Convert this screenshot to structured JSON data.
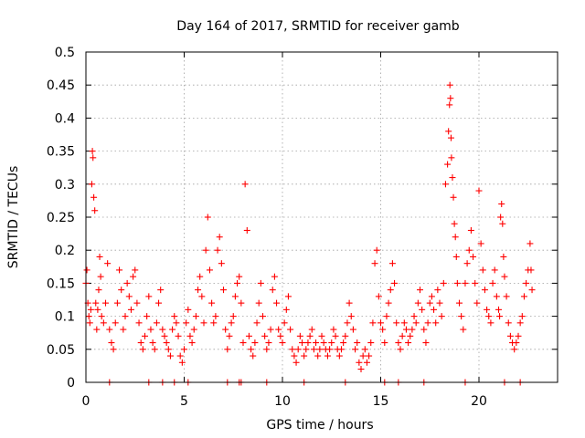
{
  "chart_data": {
    "type": "scatter",
    "title": "Day 164 of 2017, SRMTID for receiver gamb",
    "xlabel": "GPS time / hours",
    "ylabel": "SRMTID / TECUs",
    "xlim": [
      0,
      24
    ],
    "ylim": [
      0,
      0.5
    ],
    "xticks": [
      0,
      5,
      10,
      15,
      20
    ],
    "xtick_labels": [
      "0",
      "5",
      "10",
      "15",
      "20"
    ],
    "yticks": [
      0,
      0.05,
      0.1,
      0.15,
      0.2,
      0.25,
      0.3,
      0.35,
      0.4,
      0.45,
      0.5
    ],
    "ytick_labels": [
      "0",
      "0.05",
      "0.1",
      "0.15",
      "0.2",
      "0.25",
      "0.3",
      "0.35",
      "0.4",
      "0.45",
      "0.5"
    ],
    "grid": true,
    "marker": "+",
    "series": [
      {
        "name": "SRMTID",
        "color": "#ff0000",
        "x": [
          0.0,
          0.05,
          0.1,
          0.15,
          0.2,
          0.25,
          0.3,
          0.33,
          0.36,
          0.4,
          0.45,
          0.5,
          0.55,
          0.6,
          0.65,
          0.7,
          0.75,
          0.8,
          0.9,
          1.0,
          1.1,
          1.2,
          1.3,
          1.4,
          1.5,
          1.6,
          1.7,
          1.8,
          1.9,
          2.0,
          2.1,
          2.2,
          2.3,
          2.4,
          2.5,
          2.6,
          2.7,
          2.8,
          2.9,
          3.0,
          3.1,
          3.2,
          3.3,
          3.4,
          3.5,
          3.6,
          3.7,
          3.8,
          3.9,
          4.0,
          4.1,
          4.2,
          4.3,
          4.4,
          4.5,
          4.6,
          4.7,
          4.8,
          4.9,
          5.0,
          5.1,
          5.2,
          5.3,
          5.4,
          5.5,
          5.6,
          5.7,
          5.8,
          5.9,
          6.0,
          6.1,
          6.2,
          6.3,
          6.4,
          6.5,
          6.6,
          6.7,
          6.8,
          6.9,
          7.0,
          7.1,
          7.2,
          7.3,
          7.4,
          7.5,
          7.6,
          7.7,
          7.8,
          7.9,
          8.0,
          8.1,
          8.2,
          8.3,
          8.4,
          8.5,
          8.6,
          8.7,
          8.8,
          8.9,
          9.0,
          9.1,
          9.2,
          9.3,
          9.4,
          9.5,
          9.6,
          9.7,
          9.8,
          9.9,
          10.0,
          10.1,
          10.2,
          10.3,
          10.4,
          10.5,
          10.6,
          10.7,
          10.8,
          10.9,
          11.0,
          11.1,
          11.2,
          11.3,
          11.4,
          11.5,
          11.6,
          11.7,
          11.8,
          11.9,
          12.0,
          12.1,
          12.2,
          12.3,
          12.4,
          12.5,
          12.6,
          12.7,
          12.8,
          12.9,
          13.0,
          13.1,
          13.2,
          13.3,
          13.4,
          13.5,
          13.6,
          13.7,
          13.8,
          13.9,
          14.0,
          14.1,
          14.2,
          14.3,
          14.4,
          14.5,
          14.6,
          14.7,
          14.8,
          14.9,
          15.0,
          15.1,
          15.2,
          15.3,
          15.4,
          15.5,
          15.6,
          15.7,
          15.8,
          15.9,
          16.0,
          16.1,
          16.2,
          16.3,
          16.4,
          16.5,
          16.6,
          16.7,
          16.8,
          16.9,
          17.0,
          17.1,
          17.2,
          17.3,
          17.4,
          17.5,
          17.6,
          17.7,
          17.8,
          17.9,
          18.0,
          18.1,
          18.2,
          18.3,
          18.4,
          18.45,
          18.5,
          18.52,
          18.55,
          18.58,
          18.6,
          18.65,
          18.7,
          18.75,
          18.8,
          18.85,
          18.9,
          19.0,
          19.1,
          19.2,
          19.3,
          19.4,
          19.5,
          19.6,
          19.7,
          19.8,
          19.9,
          20.0,
          20.1,
          20.2,
          20.3,
          20.4,
          20.5,
          20.6,
          20.7,
          20.8,
          20.9,
          21.0,
          21.05,
          21.1,
          21.15,
          21.2,
          21.25,
          21.3,
          21.4,
          21.5,
          21.6,
          21.7,
          21.8,
          21.9,
          22.0,
          22.1,
          22.2,
          22.3,
          22.4,
          22.5,
          22.6,
          22.65,
          22.7,
          1.2,
          3.2,
          3.9,
          4.5,
          5.2,
          7.2,
          7.8,
          7.9,
          9.2,
          11.1,
          13.2,
          15.2,
          15.9,
          17.2,
          19.3,
          21.3,
          22.1
        ],
        "y": [
          0.15,
          0.17,
          0.12,
          0.1,
          0.09,
          0.11,
          0.3,
          0.35,
          0.34,
          0.28,
          0.26,
          0.12,
          0.08,
          0.11,
          0.14,
          0.19,
          0.16,
          0.1,
          0.09,
          0.12,
          0.18,
          0.08,
          0.06,
          0.05,
          0.09,
          0.12,
          0.17,
          0.14,
          0.08,
          0.1,
          0.15,
          0.13,
          0.11,
          0.16,
          0.17,
          0.12,
          0.09,
          0.06,
          0.05,
          0.07,
          0.1,
          0.13,
          0.08,
          0.06,
          0.05,
          0.09,
          0.12,
          0.14,
          0.08,
          0.07,
          0.06,
          0.05,
          0.04,
          0.08,
          0.1,
          0.09,
          0.07,
          0.04,
          0.03,
          0.05,
          0.09,
          0.11,
          0.07,
          0.06,
          0.08,
          0.1,
          0.14,
          0.16,
          0.13,
          0.09,
          0.2,
          0.25,
          0.17,
          0.12,
          0.09,
          0.1,
          0.2,
          0.22,
          0.18,
          0.14,
          0.08,
          0.05,
          0.07,
          0.09,
          0.1,
          0.13,
          0.15,
          0.16,
          0.12,
          0.06,
          0.3,
          0.23,
          0.07,
          0.05,
          0.04,
          0.06,
          0.09,
          0.12,
          0.15,
          0.1,
          0.07,
          0.05,
          0.06,
          0.08,
          0.14,
          0.16,
          0.12,
          0.08,
          0.07,
          0.06,
          0.09,
          0.11,
          0.13,
          0.08,
          0.05,
          0.04,
          0.03,
          0.05,
          0.07,
          0.06,
          0.04,
          0.05,
          0.06,
          0.07,
          0.08,
          0.05,
          0.06,
          0.04,
          0.05,
          0.07,
          0.06,
          0.05,
          0.04,
          0.05,
          0.06,
          0.08,
          0.07,
          0.05,
          0.04,
          0.05,
          0.06,
          0.07,
          0.09,
          0.12,
          0.1,
          0.08,
          0.05,
          0.06,
          0.03,
          0.02,
          0.04,
          0.05,
          0.03,
          0.04,
          0.06,
          0.09,
          0.18,
          0.2,
          0.13,
          0.09,
          0.08,
          0.06,
          0.1,
          0.12,
          0.14,
          0.18,
          0.15,
          0.09,
          0.06,
          0.05,
          0.07,
          0.09,
          0.08,
          0.06,
          0.07,
          0.08,
          0.1,
          0.09,
          0.12,
          0.14,
          0.11,
          0.08,
          0.06,
          0.09,
          0.12,
          0.13,
          0.11,
          0.09,
          0.14,
          0.12,
          0.1,
          0.15,
          0.3,
          0.33,
          0.38,
          0.42,
          0.45,
          0.43,
          0.37,
          0.34,
          0.31,
          0.28,
          0.24,
          0.22,
          0.19,
          0.15,
          0.12,
          0.1,
          0.08,
          0.15,
          0.18,
          0.2,
          0.23,
          0.19,
          0.15,
          0.12,
          0.29,
          0.21,
          0.17,
          0.14,
          0.11,
          0.1,
          0.09,
          0.15,
          0.17,
          0.13,
          0.11,
          0.1,
          0.25,
          0.27,
          0.24,
          0.19,
          0.16,
          0.13,
          0.09,
          0.07,
          0.06,
          0.05,
          0.06,
          0.07,
          0.09,
          0.1,
          0.13,
          0.15,
          0.17,
          0.21,
          0.17,
          0.14,
          0,
          0,
          0,
          0,
          0,
          0,
          0,
          0,
          0,
          0,
          0,
          0,
          0,
          0,
          0,
          0,
          0
        ]
      }
    ]
  }
}
